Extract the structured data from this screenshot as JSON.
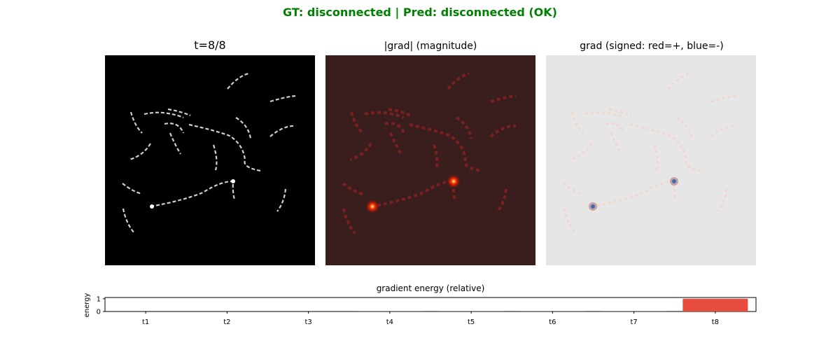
{
  "suptitle": "GT: disconnected | Pred: disconnected (OK)",
  "suptitle_color": "#008000",
  "panels": [
    {
      "title": "t=8/8",
      "kind": "input image",
      "background": "#000000"
    },
    {
      "title": "|grad| (magnitude)",
      "kind": "heatmap",
      "colormap": "hot",
      "background": "#3a1e1e"
    },
    {
      "title": "grad (signed: red=+, blue=-)",
      "kind": "heatmap",
      "colormap": "diverging red-blue",
      "background": "#e6e6e6"
    }
  ],
  "chart_data": {
    "type": "bar",
    "title": "gradient energy (relative)",
    "xlabel": "",
    "ylabel": "energy",
    "categories": [
      "t1",
      "t2",
      "t3",
      "t4",
      "t5",
      "t6",
      "t7",
      "t8"
    ],
    "values": [
      0,
      0,
      0,
      0.03,
      0.03,
      0.03,
      0.03,
      1.0
    ],
    "colors": [
      "#333333",
      "#333333",
      "#333333",
      "#333333",
      "#333333",
      "#333333",
      "#333333",
      "#e74c3c"
    ],
    "yticks": [
      "0",
      "1"
    ],
    "ylim": [
      0,
      1.1
    ],
    "grid": false
  }
}
